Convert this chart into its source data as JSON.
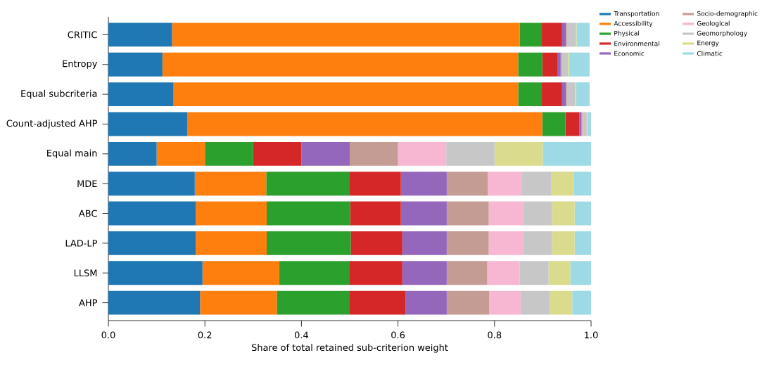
{
  "chart_data": {
    "type": "bar",
    "orientation": "horizontal",
    "stacked": true,
    "xlabel": "Share of total retained sub-criterion weight",
    "categories": [
      "CRITIC",
      "Entropy",
      "Equal subcriteria",
      "Count-adjusted AHP",
      "Equal main",
      "MDE",
      "ABC",
      "LAD-LP",
      "LLSM",
      "AHP"
    ],
    "xlim": [
      0,
      1
    ],
    "xticks": [
      {
        "value": 0,
        "label": "0.0"
      },
      0.2,
      0.4,
      0.6,
      0.8,
      {
        "value": 1,
        "label": "1.0"
      }
    ],
    "grid": false,
    "legend": "right",
    "series": [
      {
        "name": "Transportation",
        "color": "#1f77b4",
        "values": [
          0.132,
          0.112,
          0.135,
          0.164,
          0.1,
          0.179,
          0.181,
          0.181,
          0.195,
          0.19
        ]
      },
      {
        "name": "Accessibility",
        "color": "#ff7f0e",
        "values": [
          0.72,
          0.737,
          0.714,
          0.735,
          0.1,
          0.148,
          0.147,
          0.147,
          0.159,
          0.159
        ]
      },
      {
        "name": "Physical",
        "color": "#2ca02c",
        "values": [
          0.046,
          0.05,
          0.049,
          0.048,
          0.1,
          0.173,
          0.173,
          0.174,
          0.146,
          0.151
        ]
      },
      {
        "name": "Environmental",
        "color": "#d62728",
        "values": [
          0.042,
          0.031,
          0.042,
          0.029,
          0.1,
          0.106,
          0.105,
          0.107,
          0.109,
          0.116
        ]
      },
      {
        "name": "Economic",
        "color": "#9467bd",
        "values": [
          0.008,
          0.007,
          0.008,
          0.004,
          0.1,
          0.095,
          0.095,
          0.092,
          0.092,
          0.085
        ]
      },
      {
        "name": "Socio-demographic",
        "color": "#c49c94",
        "values": [
          0.002,
          0.002,
          0.002,
          0.002,
          0.1,
          0.085,
          0.087,
          0.087,
          0.084,
          0.088
        ]
      },
      {
        "name": "Geological",
        "color": "#f7b6d2",
        "values": [
          null,
          null,
          null,
          0.002,
          0.1,
          0.071,
          0.071,
          0.071,
          0.067,
          0.065
        ]
      },
      {
        "name": "Geomorphology",
        "color": "#c7c7c7",
        "values": [
          0.018,
          0.013,
          0.017,
          0.007,
          0.1,
          0.06,
          0.06,
          0.06,
          0.06,
          0.061
        ]
      },
      {
        "name": "Energy",
        "color": "#dbdb8d",
        "values": [
          0.002,
          0.002,
          0.002,
          0.002,
          0.1,
          0.047,
          0.047,
          0.047,
          0.045,
          0.046
        ]
      },
      {
        "name": "Climatic",
        "color": "#9edae5",
        "values": [
          0.027,
          0.043,
          0.028,
          0.007,
          0.1,
          0.036,
          0.034,
          0.034,
          0.043,
          0.039
        ]
      }
    ]
  }
}
